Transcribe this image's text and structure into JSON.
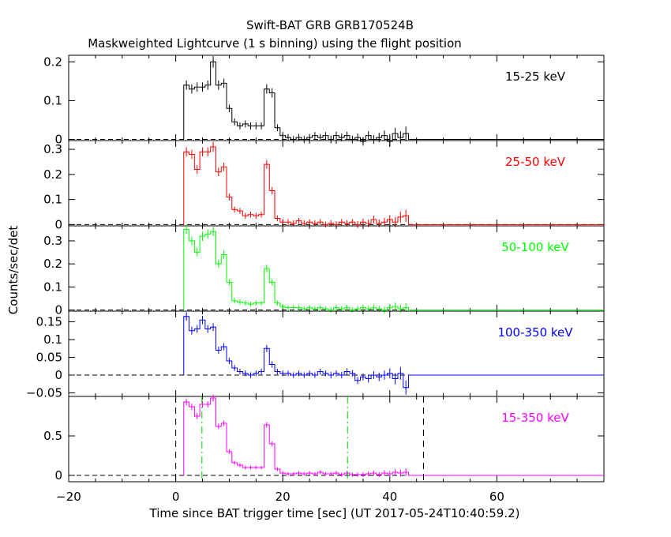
{
  "title": "Swift-BAT GRB GRB170524B",
  "subtitle": "Maskweighted Lightcurve (1 s binning) using the flight position",
  "xlabel": "Time since BAT trigger time [sec] (UT 2017-05-24T10:40:59.2)",
  "ylabel": "Counts/sec/det",
  "chart_data": [
    {
      "type": "line",
      "band": "15-25 keV",
      "color": "#000000",
      "ylim": [
        -0.003,
        0.217
      ],
      "yticks": [
        {
          "v": 0,
          "label": "0"
        },
        {
          "v": 0.1,
          "label": "0.1"
        },
        {
          "v": 0.2,
          "label": "0.2"
        }
      ],
      "x": [
        2,
        3,
        4,
        5,
        6,
        7,
        8,
        9,
        10,
        11,
        12,
        13,
        14,
        15,
        16,
        17,
        18,
        19,
        20,
        21,
        22,
        23,
        24,
        25,
        26,
        27,
        28,
        29,
        30,
        31,
        32,
        33,
        34,
        35,
        36,
        37,
        38,
        39,
        40,
        41,
        42,
        43
      ],
      "y": [
        0.14,
        0.13,
        0.135,
        0.135,
        0.14,
        0.2,
        0.14,
        0.145,
        0.08,
        0.045,
        0.035,
        0.04,
        0.035,
        0.035,
        0.035,
        0.13,
        0.12,
        0.03,
        0.01,
        0.005,
        0.0,
        0.005,
        0.0,
        0.005,
        0.01,
        0.005,
        0.01,
        0.0,
        0.01,
        0.005,
        0.01,
        0.0,
        0.005,
        -0.005,
        0.01,
        0.0,
        0.005,
        0.01,
        -0.005,
        0.015,
        0.005,
        0.015
      ],
      "err": [
        0.012,
        0.012,
        0.012,
        0.012,
        0.012,
        0.015,
        0.012,
        0.012,
        0.01,
        0.009,
        0.009,
        0.009,
        0.009,
        0.009,
        0.009,
        0.012,
        0.012,
        0.009,
        0.009,
        0.009,
        0.009,
        0.009,
        0.009,
        0.009,
        0.009,
        0.009,
        0.009,
        0.01,
        0.01,
        0.01,
        0.01,
        0.01,
        0.01,
        0.011,
        0.011,
        0.011,
        0.012,
        0.013,
        0.014,
        0.015,
        0.016,
        0.018
      ],
      "tail_end": 80
    },
    {
      "type": "line",
      "band": "25-50 keV",
      "color": "#ff0000",
      "ylim": [
        -0.005,
        0.335
      ],
      "yticks": [
        {
          "v": 0,
          "label": "0"
        },
        {
          "v": 0.1,
          "label": "0.1"
        },
        {
          "v": 0.2,
          "label": "0.2"
        },
        {
          "v": 0.3,
          "label": "0.3"
        }
      ],
      "x": [
        2,
        3,
        4,
        5,
        6,
        7,
        8,
        9,
        10,
        11,
        12,
        13,
        14,
        15,
        16,
        17,
        18,
        19,
        20,
        21,
        22,
        23,
        24,
        25,
        26,
        27,
        28,
        29,
        30,
        31,
        32,
        33,
        34,
        35,
        36,
        37,
        38,
        39,
        40,
        41,
        42,
        43
      ],
      "y": [
        0.29,
        0.28,
        0.22,
        0.29,
        0.29,
        0.31,
        0.21,
        0.23,
        0.11,
        0.06,
        0.055,
        0.035,
        0.04,
        0.035,
        0.04,
        0.24,
        0.135,
        0.025,
        0.01,
        0.01,
        0.005,
        0.015,
        0.005,
        0.01,
        0.005,
        0.01,
        0.0,
        0.005,
        0.0,
        0.01,
        0.005,
        0.01,
        0.0,
        0.01,
        0.005,
        0.02,
        0.005,
        0.01,
        0.02,
        0.01,
        0.03,
        0.035
      ],
      "err": [
        0.018,
        0.018,
        0.017,
        0.018,
        0.018,
        0.02,
        0.017,
        0.017,
        0.014,
        0.012,
        0.012,
        0.012,
        0.012,
        0.012,
        0.012,
        0.017,
        0.015,
        0.012,
        0.012,
        0.012,
        0.012,
        0.012,
        0.012,
        0.012,
        0.012,
        0.012,
        0.012,
        0.013,
        0.013,
        0.013,
        0.013,
        0.013,
        0.014,
        0.014,
        0.015,
        0.016,
        0.016,
        0.017,
        0.018,
        0.02,
        0.022,
        0.024
      ],
      "tail_end": 80
    },
    {
      "type": "line",
      "band": "50-100 keV",
      "color": "#00ff00",
      "ylim": [
        -0.005,
        0.365
      ],
      "yticks": [
        {
          "v": 0,
          "label": "0"
        },
        {
          "v": 0.1,
          "label": "0.1"
        },
        {
          "v": 0.2,
          "label": "0.2"
        },
        {
          "v": 0.3,
          "label": "0.3"
        }
      ],
      "x": [
        2,
        3,
        4,
        5,
        6,
        7,
        8,
        9,
        10,
        11,
        12,
        13,
        14,
        15,
        16,
        17,
        18,
        19,
        20,
        21,
        22,
        23,
        24,
        25,
        26,
        27,
        28,
        29,
        30,
        31,
        32,
        33,
        34,
        35,
        36,
        37,
        38,
        39,
        40,
        41,
        42,
        43
      ],
      "y": [
        0.35,
        0.3,
        0.25,
        0.32,
        0.33,
        0.34,
        0.2,
        0.24,
        0.12,
        0.04,
        0.035,
        0.03,
        0.025,
        0.03,
        0.03,
        0.18,
        0.12,
        0.03,
        0.015,
        0.01,
        0.01,
        0.01,
        0.005,
        0.01,
        0.005,
        0.01,
        0.005,
        0.0,
        0.01,
        0.005,
        0.01,
        0.0,
        0.005,
        0.01,
        0.005,
        0.01,
        0.005,
        0.0,
        0.01,
        0.015,
        0.005,
        0.01
      ],
      "err": [
        0.02,
        0.019,
        0.018,
        0.02,
        0.02,
        0.02,
        0.017,
        0.018,
        0.014,
        0.011,
        0.011,
        0.011,
        0.011,
        0.011,
        0.011,
        0.016,
        0.014,
        0.011,
        0.011,
        0.011,
        0.011,
        0.011,
        0.011,
        0.011,
        0.011,
        0.011,
        0.011,
        0.012,
        0.012,
        0.012,
        0.012,
        0.012,
        0.013,
        0.013,
        0.013,
        0.014,
        0.014,
        0.015,
        0.016,
        0.017,
        0.018,
        0.019
      ],
      "tail_end": 80
    },
    {
      "type": "line",
      "band": "100-350 keV",
      "color": "#0000ff",
      "ylim": [
        -0.06,
        0.18
      ],
      "yticks": [
        {
          "v": -0.05,
          "label": "−0.05"
        },
        {
          "v": 0,
          "label": "0"
        },
        {
          "v": 0.05,
          "label": "0.05"
        },
        {
          "v": 0.1,
          "label": "0.1"
        },
        {
          "v": 0.15,
          "label": "0.15"
        }
      ],
      "x": [
        2,
        3,
        4,
        5,
        6,
        7,
        8,
        9,
        10,
        11,
        12,
        13,
        14,
        15,
        16,
        17,
        18,
        19,
        20,
        21,
        22,
        23,
        24,
        25,
        26,
        27,
        28,
        29,
        30,
        31,
        32,
        33,
        34,
        35,
        36,
        37,
        38,
        39,
        40,
        41,
        42,
        43
      ],
      "y": [
        0.165,
        0.125,
        0.13,
        0.155,
        0.13,
        0.135,
        0.07,
        0.08,
        0.04,
        0.02,
        0.01,
        0.005,
        0.0,
        0.005,
        0.01,
        0.075,
        0.03,
        0.01,
        0.005,
        0.005,
        0.0,
        0.005,
        0.0,
        0.005,
        0.0,
        0.01,
        0.005,
        0.0,
        0.005,
        0.0,
        0.01,
        0.005,
        -0.015,
        -0.005,
        -0.01,
        0.0,
        -0.005,
        0.0,
        0.005,
        -0.01,
        0.005,
        -0.035
      ],
      "err": [
        0.012,
        0.011,
        0.011,
        0.012,
        0.011,
        0.011,
        0.01,
        0.01,
        0.009,
        0.008,
        0.008,
        0.008,
        0.008,
        0.008,
        0.008,
        0.01,
        0.009,
        0.008,
        0.008,
        0.008,
        0.008,
        0.008,
        0.008,
        0.008,
        0.008,
        0.008,
        0.008,
        0.009,
        0.009,
        0.009,
        0.009,
        0.009,
        0.01,
        0.01,
        0.011,
        0.011,
        0.012,
        0.013,
        0.014,
        0.016,
        0.018,
        0.02
      ],
      "tail_end": 80
    },
    {
      "type": "line",
      "band": "15-350 keV",
      "color": "#ff00ff",
      "ylim": [
        -0.08,
        1.0
      ],
      "yticks": [
        {
          "v": 0,
          "label": "0"
        },
        {
          "v": 0.5,
          "label": "0.5"
        }
      ],
      "x": [
        2,
        3,
        4,
        5,
        6,
        7,
        8,
        9,
        10,
        11,
        12,
        13,
        14,
        15,
        16,
        17,
        18,
        19,
        20,
        21,
        22,
        23,
        24,
        25,
        26,
        27,
        28,
        29,
        30,
        31,
        32,
        33,
        34,
        35,
        36,
        37,
        38,
        39,
        40,
        41,
        42,
        43
      ],
      "y": [
        0.93,
        0.87,
        0.75,
        0.9,
        0.9,
        0.98,
        0.62,
        0.66,
        0.3,
        0.16,
        0.13,
        0.1,
        0.1,
        0.1,
        0.1,
        0.64,
        0.4,
        0.08,
        0.03,
        0.02,
        0.02,
        0.03,
        0.02,
        0.03,
        0.02,
        0.04,
        0.02,
        0.02,
        0.03,
        0.01,
        0.03,
        0.01,
        0.01,
        0.01,
        0.02,
        0.03,
        0.01,
        0.03,
        0.02,
        0.04,
        0.03,
        0.04
      ],
      "err": [
        0.04,
        0.04,
        0.04,
        0.04,
        0.04,
        0.045,
        0.035,
        0.035,
        0.028,
        0.024,
        0.024,
        0.024,
        0.024,
        0.024,
        0.024,
        0.035,
        0.03,
        0.024,
        0.024,
        0.024,
        0.024,
        0.024,
        0.024,
        0.024,
        0.025,
        0.025,
        0.025,
        0.026,
        0.026,
        0.027,
        0.027,
        0.028,
        0.029,
        0.03,
        0.031,
        0.032,
        0.033,
        0.035,
        0.037,
        0.04,
        0.043,
        0.047
      ],
      "tail_end": 80,
      "markers": [
        {
          "x": 0,
          "style": "dashed",
          "color": "#000000"
        },
        {
          "x": 4.9,
          "style": "dashdot",
          "color": "#00cc00"
        },
        {
          "x": 32.1,
          "style": "dashdot",
          "color": "#00cc00"
        },
        {
          "x": 46.3,
          "style": "dashed",
          "color": "#000000"
        }
      ]
    }
  ],
  "xaxis": {
    "xlim": [
      -20,
      80
    ],
    "ticks": [
      {
        "v": -20,
        "label": "−20"
      },
      {
        "v": 0,
        "label": "0"
      },
      {
        "v": 20,
        "label": "20"
      },
      {
        "v": 40,
        "label": "40"
      },
      {
        "v": 60,
        "label": "60"
      }
    ],
    "minor_step": 5
  }
}
